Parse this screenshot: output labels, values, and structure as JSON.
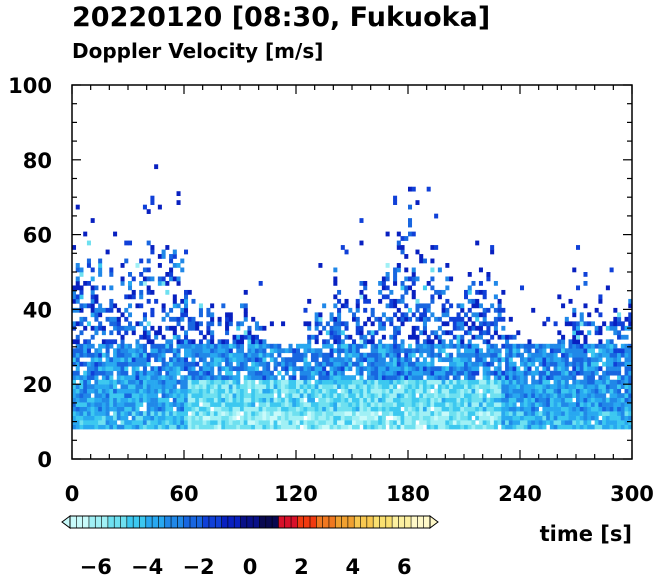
{
  "chart_data": {
    "type": "heatmap",
    "title": "20220120 [08:30, Fukuoka]",
    "subtitle": "Doppler Velocity [m/s]",
    "xlabel": "time [s]",
    "ylabel": "",
    "xlim": [
      0,
      300
    ],
    "ylim": [
      0,
      100
    ],
    "x_ticks": [
      "0",
      "60",
      "120",
      "180",
      "240",
      "300"
    ],
    "y_ticks": [
      "0",
      "20",
      "40",
      "60",
      "80",
      "100"
    ],
    "data_range_y": [
      8,
      100
    ],
    "colorbar": {
      "ticks": [
        "−6",
        "−4",
        "−2",
        "0",
        "2",
        "4",
        "6"
      ],
      "range": [
        -7,
        7
      ],
      "colors": [
        "#c8fafa",
        "#a0f0f5",
        "#6ee0f0",
        "#3cc8f0",
        "#28a8f0",
        "#2088e8",
        "#1866e0",
        "#1040d8",
        "#0820c0",
        "#081088",
        "#080850",
        "#d8102a",
        "#f03a10",
        "#f07820",
        "#f0a030",
        "#f8c850",
        "#fae070",
        "#fcf0a0",
        "#fef8c8"
      ]
    },
    "bands": [
      {
        "t_range": [
          0,
          300
        ],
        "height_range": [
          8,
          20
        ],
        "mean_velocity": -3.5
      },
      {
        "t_range": [
          60,
          230
        ],
        "height_range": [
          8,
          20
        ],
        "mean_velocity": -5.0
      },
      {
        "t_range": [
          0,
          300
        ],
        "height_range": [
          20,
          45
        ],
        "mean_velocity": -2.0
      },
      {
        "t_range": [
          0,
          300
        ],
        "height_range": [
          45,
          60
        ],
        "mean_velocity": -1.0
      }
    ]
  }
}
